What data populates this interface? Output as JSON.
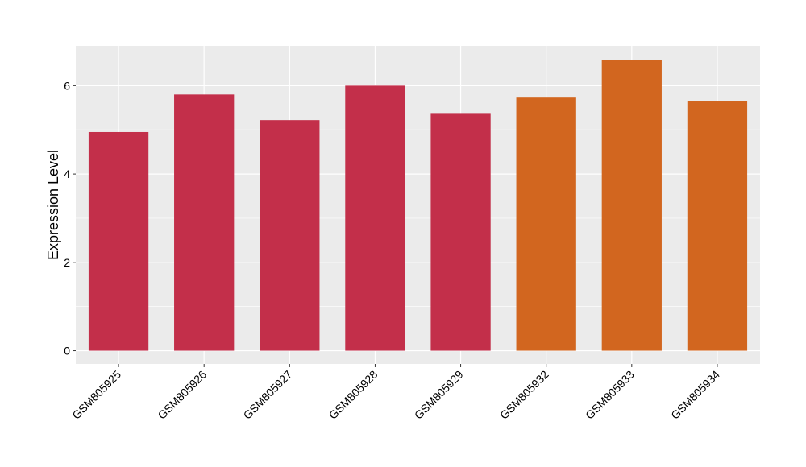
{
  "chart_data": {
    "type": "bar",
    "title": "",
    "xlabel": "",
    "ylabel": "Expression Level",
    "categories": [
      "GSM805925",
      "GSM805926",
      "GSM805927",
      "GSM805928",
      "GSM805929",
      "GSM805932",
      "GSM805933",
      "GSM805934"
    ],
    "values": [
      4.95,
      5.8,
      5.22,
      6.0,
      5.38,
      5.73,
      6.58,
      5.66
    ],
    "bar_colors": [
      "#c32f4a",
      "#c32f4a",
      "#c32f4a",
      "#c32f4a",
      "#c32f4a",
      "#d2661f",
      "#d2661f",
      "#d2661f"
    ],
    "yticks": [
      0,
      2,
      4,
      6
    ],
    "ylim": [
      -0.3,
      6.9
    ],
    "grid": true,
    "panel_color": "#ebebeb"
  }
}
